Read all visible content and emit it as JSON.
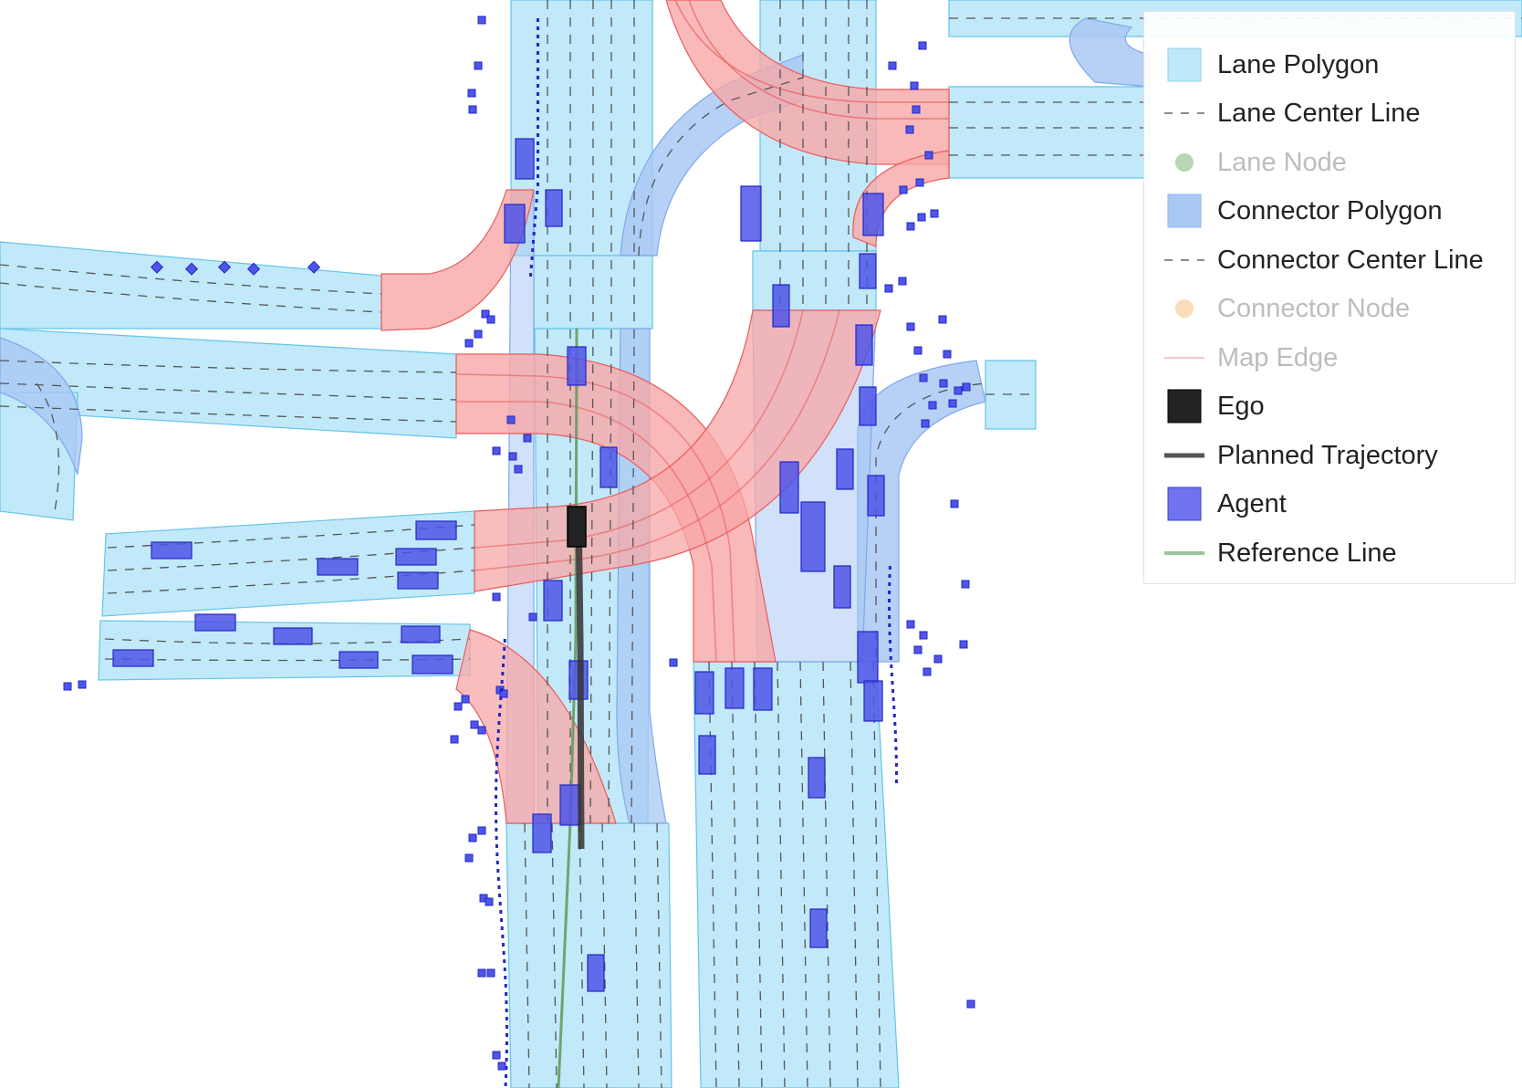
{
  "colors": {
    "lane_fill": "#bfe8f9",
    "lane_stroke": "#63c4ea",
    "connector_fill": "#a9c8f4",
    "connector_stroke": "#7fa8ea",
    "red_fill": "#f8a7a7",
    "red_stroke": "#ea5c5c",
    "agent_fill": "#4f55e8",
    "agent_stroke": "#2127c6",
    "ego": "#222222",
    "trajectory": "#333333",
    "reference": "#5a9a5a",
    "dashed": "#555555"
  },
  "legend": {
    "items": [
      {
        "label": "Lane Polygon",
        "symbol": "lane-polygon-swatch",
        "visible": true
      },
      {
        "label": "Lane Center Line",
        "symbol": "dashed-line-swatch",
        "visible": true
      },
      {
        "label": "Lane Node",
        "symbol": "green-dot-swatch",
        "visible": false
      },
      {
        "label": "Connector Polygon",
        "symbol": "connector-polygon-swatch",
        "visible": true
      },
      {
        "label": "Connector Center Line",
        "symbol": "dashed-line-swatch",
        "visible": true
      },
      {
        "label": "Connector Node",
        "symbol": "orange-dot-swatch",
        "visible": false
      },
      {
        "label": "Map Edge",
        "symbol": "pink-line-swatch",
        "visible": false
      },
      {
        "label": "Ego",
        "symbol": "black-square-swatch",
        "visible": true
      },
      {
        "label": "Planned Trajectory",
        "symbol": "dark-line-swatch",
        "visible": true
      },
      {
        "label": "Agent",
        "symbol": "blue-square-swatch",
        "visible": true
      },
      {
        "label": "Reference Line",
        "symbol": "green-line-swatch",
        "visible": true
      }
    ]
  }
}
